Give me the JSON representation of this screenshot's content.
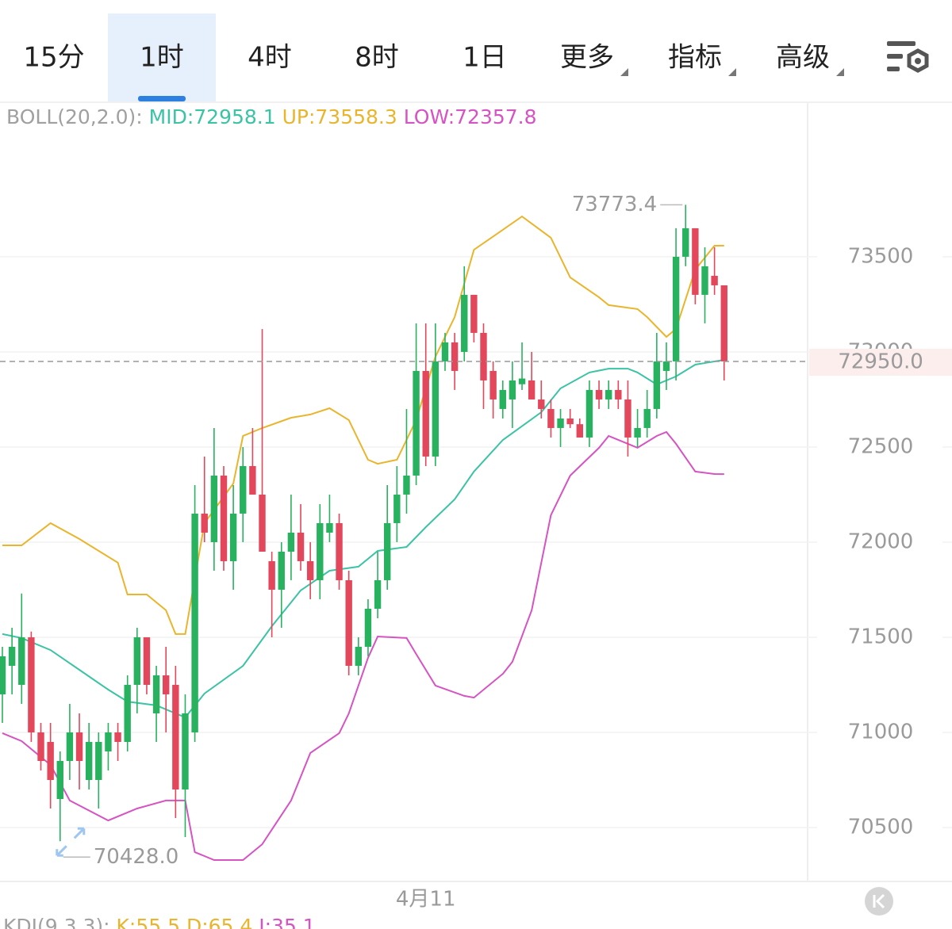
{
  "tabs": {
    "items": [
      "15分",
      "1时",
      "4时",
      "8时",
      "1日"
    ],
    "menus": [
      "更多",
      "指标",
      "高级"
    ],
    "selected": 1
  },
  "chart_data": {
    "type": "candlestick",
    "indicator": {
      "name": "BOLL(20,2.0):",
      "mid": "MID:72958.1",
      "up": "UP:73558.3",
      "low": "LOW:72357.8"
    },
    "categories": [
      null,
      null,
      null,
      null,
      null,
      null,
      null,
      null,
      null,
      null,
      null,
      null,
      null,
      null,
      null,
      null,
      null,
      null,
      null,
      null,
      null,
      null,
      null,
      null,
      null,
      null,
      null,
      null,
      null,
      null,
      null,
      null,
      null,
      null,
      null,
      null,
      null,
      null,
      null,
      null,
      null,
      null,
      null,
      null,
      "4月11",
      null,
      null,
      null,
      null,
      null,
      null,
      null,
      null,
      null,
      null,
      null,
      null,
      null,
      null,
      null,
      null,
      null,
      null,
      null,
      null,
      null,
      null,
      null,
      null,
      null,
      null,
      null,
      null,
      null,
      null,
      null
    ],
    "open": [
      71200,
      71350,
      71250,
      71500,
      71000,
      70950,
      70650,
      70850,
      71000,
      70750,
      70750,
      70900,
      71000,
      70950,
      71250,
      71500,
      71100,
      71300,
      71250,
      70700,
      71000,
      72150,
      72000,
      72350,
      71900,
      72150,
      72400,
      72250,
      71900,
      71750,
      71950,
      72050,
      71900,
      71800,
      72050,
      72100,
      71800,
      71350,
      71450,
      71650,
      71800,
      72100,
      72250,
      72350,
      72900,
      72450,
      72950,
      73050,
      73000,
      73300,
      73100,
      72900,
      72700,
      72750,
      72830,
      72850,
      72750,
      72700,
      72600,
      72650,
      72620,
      72550,
      72800,
      72750,
      72800,
      72750,
      72550,
      72600,
      72700,
      72900,
      72950,
      73500,
      73650,
      73300,
      73400,
      73350
    ],
    "high": [
      71450,
      71550,
      71730,
      71530,
      71050,
      71050,
      70900,
      71150,
      71100,
      71050,
      71000,
      71050,
      71050,
      71300,
      71550,
      71500,
      71350,
      71450,
      71350,
      71200,
      72300,
      72450,
      72600,
      72400,
      72300,
      72500,
      72600,
      73120,
      71950,
      72000,
      72250,
      72200,
      72000,
      72200,
      72250,
      72150,
      71850,
      71500,
      71700,
      71950,
      72300,
      72400,
      72700,
      73150,
      73150,
      73150,
      73100,
      73100,
      73450,
      73300,
      73150,
      72950,
      72850,
      72950,
      73050,
      73000,
      72850,
      72750,
      72700,
      72700,
      72650,
      72850,
      72850,
      72850,
      72850,
      72850,
      72700,
      72800,
      73100,
      73050,
      73650,
      73773.4,
      73650,
      73550,
      73550,
      73350
    ],
    "low": [
      71050,
      71200,
      71150,
      70950,
      70800,
      70600,
      70428,
      70750,
      70700,
      70700,
      70600,
      70800,
      70850,
      70900,
      71100,
      71200,
      70950,
      71000,
      70550,
      70450,
      70950,
      72000,
      71850,
      71850,
      71750,
      72000,
      72250,
      71950,
      71500,
      71550,
      71800,
      71850,
      71700,
      71700,
      72000,
      71750,
      71300,
      71300,
      71400,
      71600,
      71750,
      72000,
      72150,
      72300,
      72400,
      72400,
      72900,
      72800,
      72950,
      73050,
      72700,
      72650,
      72650,
      72600,
      72800,
      72750,
      72650,
      72550,
      72500,
      72600,
      72550,
      72500,
      72700,
      72700,
      72700,
      72450,
      72500,
      72550,
      72650,
      72800,
      72850,
      73450,
      73250,
      73150,
      73300,
      72850
    ],
    "close": [
      71400,
      71450,
      71500,
      71000,
      70850,
      70750,
      70850,
      71000,
      70850,
      70950,
      70950,
      71000,
      70950,
      71250,
      71500,
      71250,
      71300,
      71200,
      70700,
      71100,
      72150,
      72050,
      72350,
      71900,
      72150,
      72400,
      72250,
      71950,
      71750,
      71950,
      72050,
      71900,
      71800,
      72100,
      72100,
      71800,
      71350,
      71450,
      71650,
      71800,
      72100,
      72250,
      72350,
      72900,
      72450,
      72950,
      73050,
      72900,
      73300,
      73100,
      72850,
      72750,
      72800,
      72850,
      72860,
      72750,
      72700,
      72600,
      72650,
      72620,
      72550,
      72800,
      72750,
      72800,
      72750,
      72550,
      72600,
      72700,
      72950,
      72950,
      73500,
      73650,
      73300,
      73450,
      73350,
      72950
    ],
    "up_color": "#28b25f",
    "down_color": "#e2475b",
    "bands": [
      {
        "color": "#e9b52c",
        "x": [
          0,
          2,
          5,
          8,
          12,
          13,
          15,
          17,
          18,
          19,
          20,
          21,
          24,
          25,
          27,
          30,
          32,
          34,
          36,
          38,
          39,
          41,
          43,
          45,
          47,
          49,
          52,
          54,
          57,
          59,
          62,
          63,
          66,
          67,
          69,
          70,
          72,
          74,
          75
        ],
        "values": [
          71983,
          71983,
          72100,
          72017,
          71892,
          71725,
          71725,
          71642,
          71517,
          71517,
          71808,
          72100,
          72308,
          72558,
          72600,
          72654,
          72671,
          72704,
          72642,
          72433,
          72412,
          72433,
          72642,
          72975,
          73183,
          73537,
          73642,
          73712,
          73600,
          73392,
          73287,
          73246,
          73225,
          73183,
          73079,
          73121,
          73433,
          73558,
          73558.3
        ]
      },
      {
        "color": "#3cc3a6",
        "x": [
          0,
          2,
          5,
          8,
          11,
          13,
          16,
          19,
          21,
          25,
          28,
          31,
          34,
          37,
          39,
          42,
          44,
          47,
          49,
          52,
          56,
          58,
          61,
          63,
          65,
          66,
          68,
          70,
          72,
          75
        ],
        "values": [
          71517,
          71496,
          71433,
          71329,
          71225,
          71162,
          71142,
          71079,
          71204,
          71350,
          71558,
          71746,
          71850,
          71871,
          71954,
          71975,
          72079,
          72225,
          72371,
          72537,
          72683,
          72808,
          72892,
          72912,
          72912,
          72892,
          72829,
          72871,
          72933,
          72958.1
        ]
      },
      {
        "color": "#d653c2",
        "x": [
          0,
          2,
          5,
          7,
          11,
          14,
          17,
          19,
          20,
          22,
          25,
          27,
          30,
          32,
          35,
          36,
          38,
          39,
          42,
          43,
          45,
          48,
          49,
          52,
          53,
          55,
          57,
          59,
          62,
          63,
          65,
          66,
          68,
          69,
          70,
          72,
          74,
          75
        ],
        "values": [
          70996,
          70954,
          70829,
          70642,
          70537,
          70600,
          70642,
          70642,
          70371,
          70329,
          70329,
          70412,
          70642,
          70892,
          70996,
          71100,
          71392,
          71504,
          71496,
          71412,
          71246,
          71192,
          71183,
          71308,
          71371,
          71642,
          72142,
          72350,
          72496,
          72558,
          72517,
          72496,
          72558,
          72579,
          72517,
          72371,
          72358,
          72357.8
        ]
      }
    ],
    "ylim": [
      70225,
      74308
    ],
    "yticks": [
      70500,
      71000,
      71500,
      72000,
      72500,
      73000,
      73500
    ],
    "grid": true,
    "last_price": {
      "value": 72950,
      "label": "72950.0"
    },
    "annotations": [
      {
        "value": 73773.4,
        "label": "73773.4"
      },
      {
        "value": 70428,
        "label": "70428.0"
      }
    ]
  },
  "footer": {
    "indicator": "KDJ(9,3,3):",
    "k": "K:55.5",
    "d": "D:65.4",
    "j": "J:35.1"
  }
}
